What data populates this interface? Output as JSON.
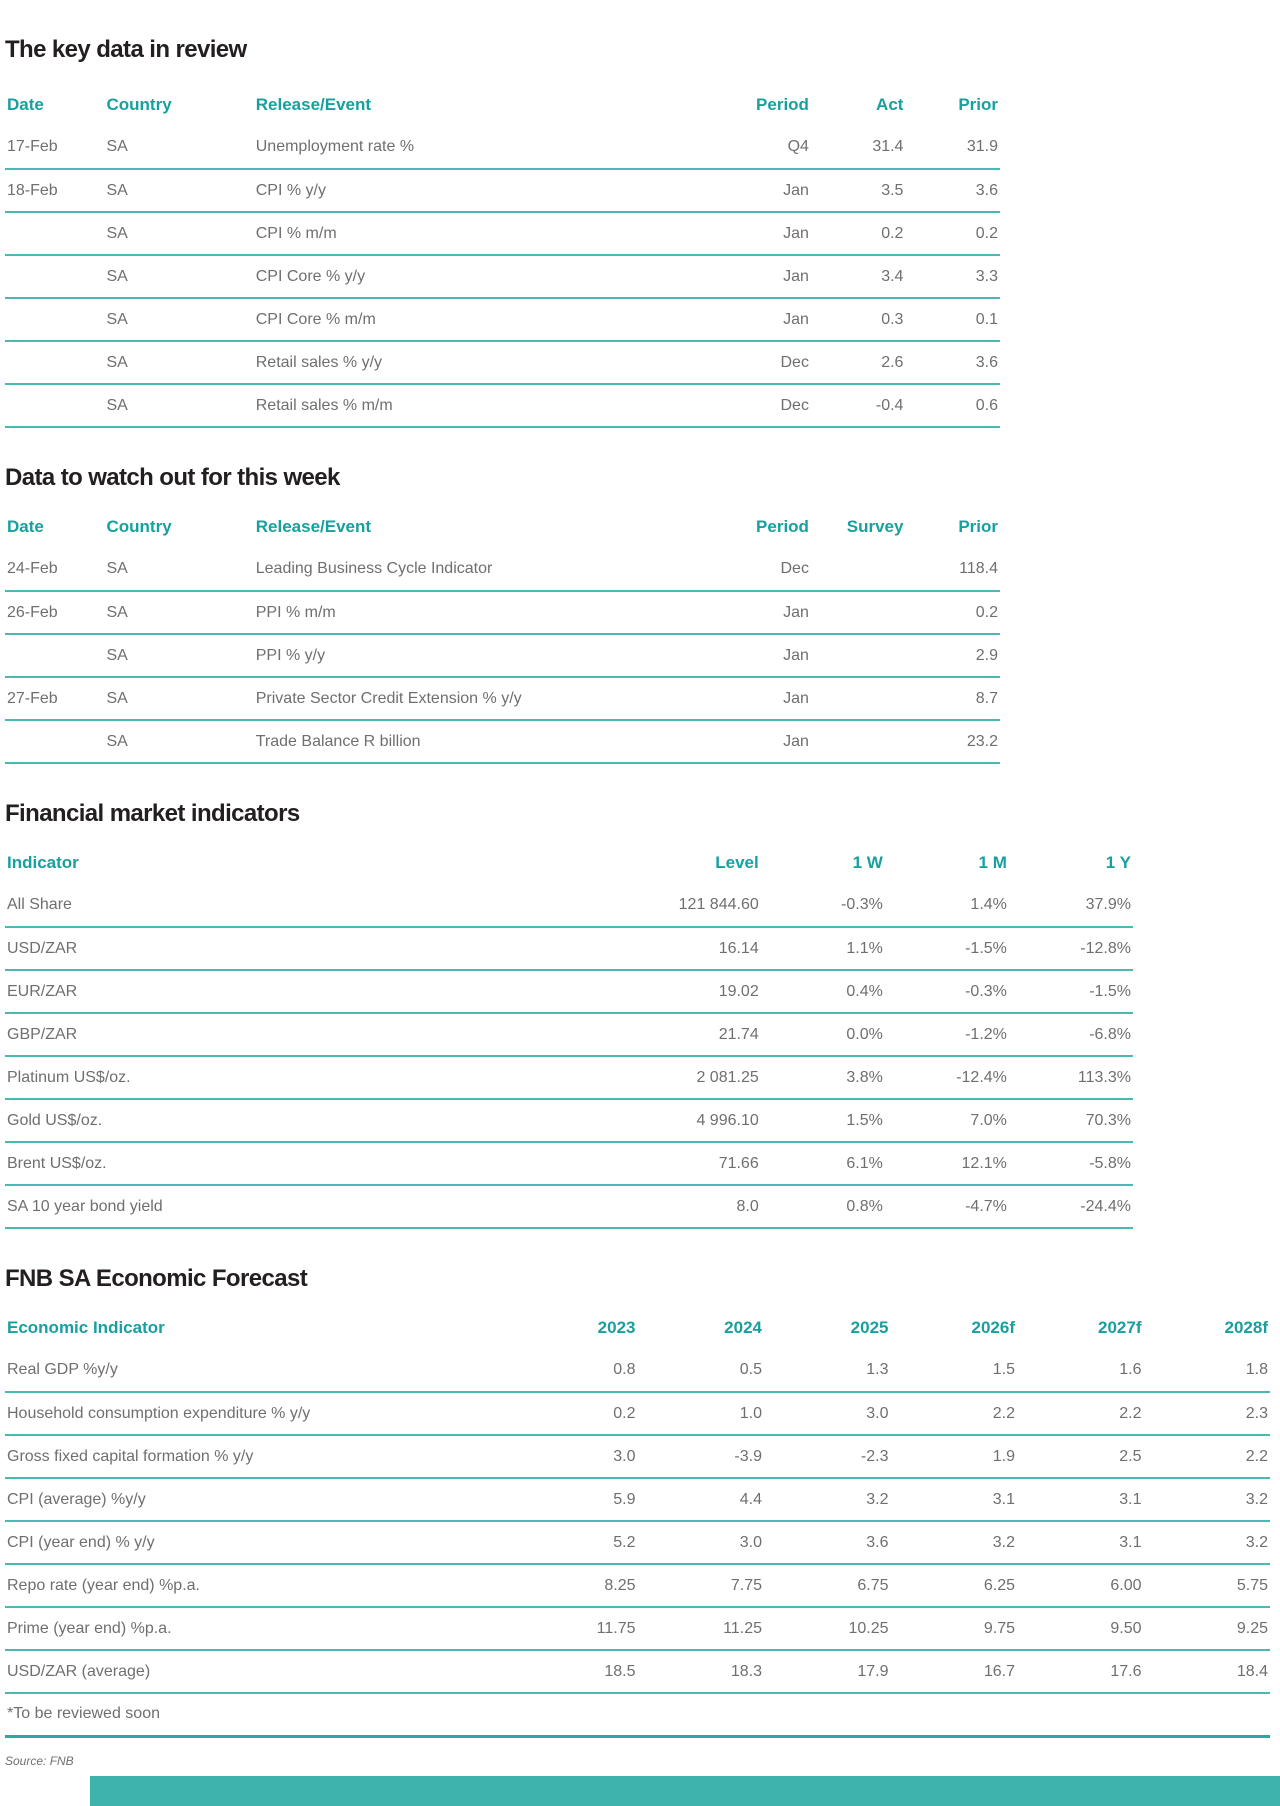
{
  "colors": {
    "accent_teal": "#17a09f",
    "separator_teal": "#4ab8b3",
    "footer_bar_teal": "#3cb4ad",
    "title_ink": "#231f20",
    "body_gray": "#6e6f71"
  },
  "source_note": "Source: FNB",
  "sections": {
    "key_data": {
      "title": "The key data in review",
      "columns": [
        "Date",
        "Country",
        "Release/Event",
        "Period",
        "Act",
        "Prior"
      ],
      "rows": [
        [
          "17-Feb",
          "SA",
          "Unemployment rate %",
          "Q4",
          "31.4",
          "31.9"
        ],
        [
          "18-Feb",
          "SA",
          "CPI % y/y",
          "Jan",
          "3.5",
          "3.6"
        ],
        [
          "",
          "SA",
          "CPI % m/m",
          "Jan",
          "0.2",
          "0.2"
        ],
        [
          "",
          "SA",
          "CPI Core % y/y",
          "Jan",
          "3.4",
          "3.3"
        ],
        [
          "",
          "SA",
          "CPI Core % m/m",
          "Jan",
          "0.3",
          "0.1"
        ],
        [
          "",
          "SA",
          "Retail sales % y/y",
          "Dec",
          "2.6",
          "3.6"
        ],
        [
          "",
          "SA",
          "Retail sales % m/m",
          "Dec",
          "-0.4",
          "0.6"
        ]
      ]
    },
    "watch_week": {
      "title": "Data to watch out for this week",
      "columns": [
        "Date",
        "Country",
        "Release/Event",
        "Period",
        "Survey",
        "Prior"
      ],
      "rows": [
        [
          "24-Feb",
          "SA",
          "Leading Business Cycle Indicator",
          "Dec",
          "",
          "118.4"
        ],
        [
          "26-Feb",
          "SA",
          "PPI % m/m",
          "Jan",
          "",
          "0.2"
        ],
        [
          "",
          "SA",
          "PPI % y/y",
          "Jan",
          "",
          "2.9"
        ],
        [
          "27-Feb",
          "SA",
          "Private Sector Credit Extension % y/y",
          "Jan",
          "",
          "8.7"
        ],
        [
          "",
          "SA",
          "Trade Balance R billion",
          "Jan",
          "",
          "23.2"
        ]
      ]
    },
    "market": {
      "title": "Financial market indicators",
      "columns": [
        "Indicator",
        "Level",
        "1 W",
        "1 M",
        "1 Y"
      ],
      "rows": [
        [
          "All Share",
          "121 844.60",
          "-0.3%",
          "1.4%",
          "37.9%"
        ],
        [
          "USD/ZAR",
          "16.14",
          "1.1%",
          "-1.5%",
          "-12.8%"
        ],
        [
          "EUR/ZAR",
          "19.02",
          "0.4%",
          "-0.3%",
          "-1.5%"
        ],
        [
          "GBP/ZAR",
          "21.74",
          "0.0%",
          "-1.2%",
          "-6.8%"
        ],
        [
          "Platinum US$/oz.",
          "2 081.25",
          "3.8%",
          "-12.4%",
          "113.3%"
        ],
        [
          "Gold US$/oz.",
          "4 996.10",
          "1.5%",
          "7.0%",
          "70.3%"
        ],
        [
          "Brent US$/oz.",
          "71.66",
          "6.1%",
          "12.1%",
          "-5.8%"
        ],
        [
          "SA 10 year bond yield",
          "8.0",
          "0.8%",
          "-4.7%",
          "-24.4%"
        ]
      ]
    },
    "forecast": {
      "title": "FNB SA Economic Forecast",
      "columns": [
        "Economic Indicator",
        "2023",
        "2024",
        "2025",
        "2026f",
        "2027f",
        "2028f"
      ],
      "rows": [
        [
          "Real GDP %y/y",
          "0.8",
          "0.5",
          "1.3",
          "1.5",
          "1.6",
          "1.8"
        ],
        [
          "Household consumption expenditure % y/y",
          "0.2",
          "1.0",
          "3.0",
          "2.2",
          "2.2",
          "2.3"
        ],
        [
          "Gross fixed capital formation % y/y",
          "3.0",
          "-3.9",
          "-2.3",
          "1.9",
          "2.5",
          "2.2"
        ],
        [
          "CPI (average) %y/y",
          "5.9",
          "4.4",
          "3.2",
          "3.1",
          "3.1",
          "3.2"
        ],
        [
          "CPI (year end) % y/y",
          "5.2",
          "3.0",
          "3.6",
          "3.2",
          "3.1",
          "3.2"
        ],
        [
          "Repo rate (year end) %p.a.",
          "8.25",
          "7.75",
          "6.75",
          "6.25",
          "6.00",
          "5.75"
        ],
        [
          "Prime (year end) %p.a.",
          "11.75",
          "11.25",
          "10.25",
          "9.75",
          "9.50",
          "9.25"
        ],
        [
          "USD/ZAR (average)",
          "18.5",
          "18.3",
          "17.9",
          "16.7",
          "17.6",
          "18.4"
        ]
      ],
      "footnote": "*To be reviewed soon"
    }
  }
}
